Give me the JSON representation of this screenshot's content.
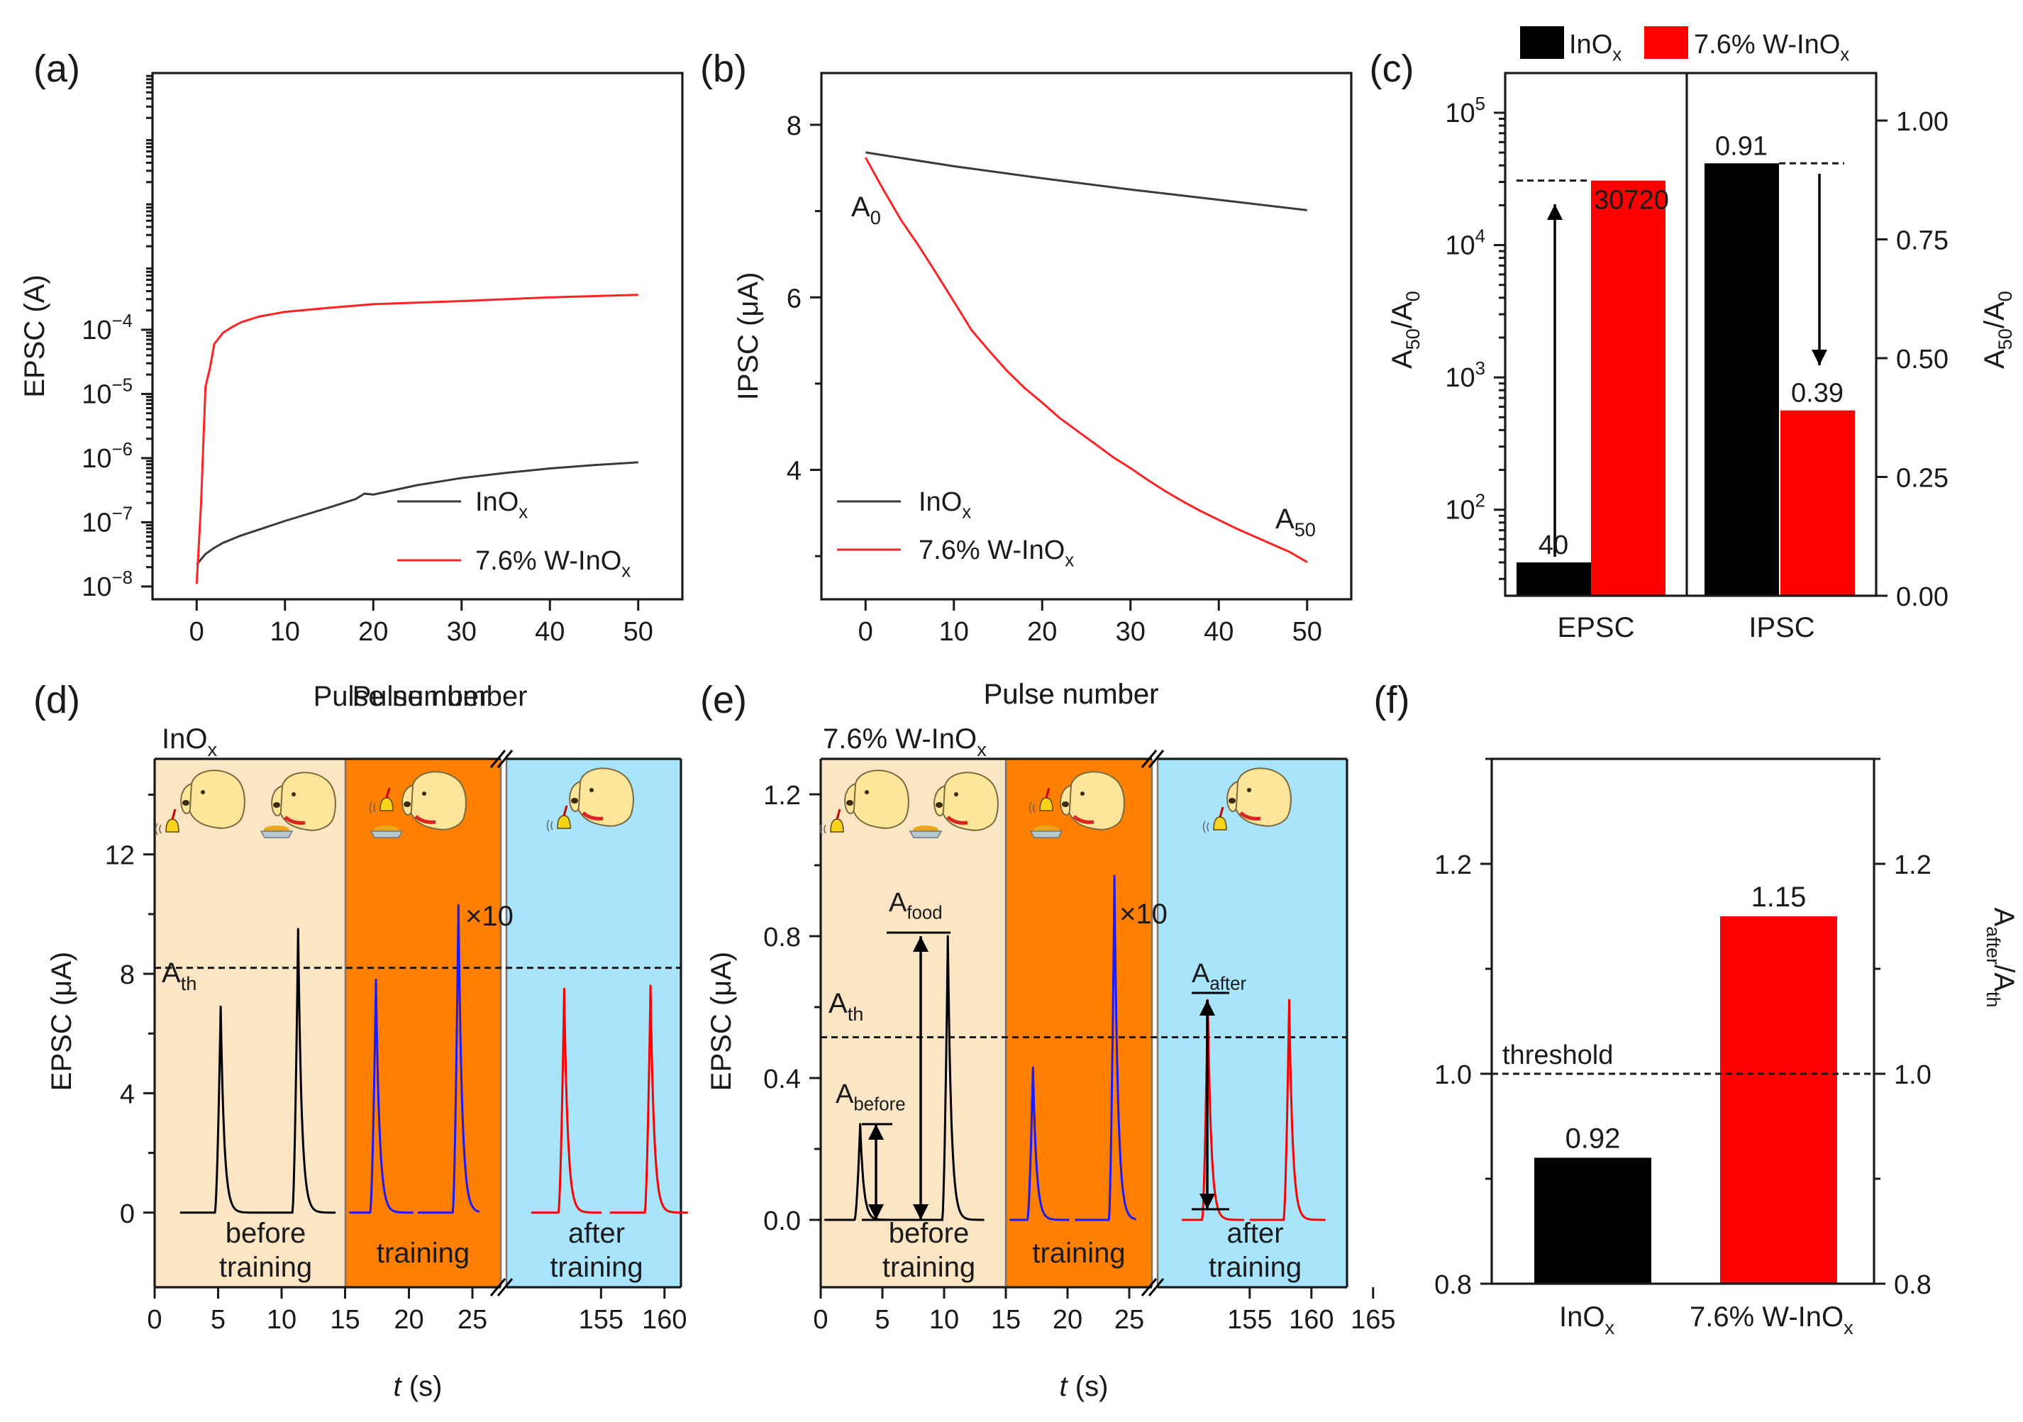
{
  "panels": {
    "a": {
      "label": "(a)"
    },
    "b": {
      "label": "(b)"
    },
    "c": {
      "label": "(c)"
    },
    "d": {
      "label": "(d)"
    },
    "e": {
      "label": "(e)"
    },
    "f": {
      "label": "(f)"
    }
  },
  "legend_labels": {
    "inox": "InO",
    "inox_sub": "x",
    "w": "7.6% W-InO",
    "w_sub": "x"
  },
  "annotations": {
    "A0": "A",
    "A0_sub": "0",
    "A50": "A",
    "A50_sub": "50",
    "Ath": "A",
    "Ath_sub": "th",
    "Afood": "A",
    "Afood_sub": "food",
    "Abefore": "A",
    "Abefore_sub": "before",
    "Aafter": "A",
    "Aafter_sub": "after",
    "x10": "×10",
    "threshold": "threshold",
    "before_training": [
      "before",
      "training"
    ],
    "training": "training",
    "after_training": [
      "after",
      "training"
    ],
    "inox_title": "InO",
    "inox_title_sub": "x",
    "w_title": "7.6% W-InO",
    "w_title_sub": "x"
  },
  "colors": {
    "inox": "#3a3a3a",
    "w": "#ff2222",
    "black": "#000000",
    "red": "#ff0000",
    "blue": "#1a1aff",
    "beige": "#fbe5c4",
    "orange": "#ff7f00",
    "cyan": "#a8e4fb",
    "dog": "#fde69a"
  },
  "chart_data": [
    {
      "panel": "a",
      "type": "line",
      "xlabel": "Pulse number",
      "ylabel": "EPSC (A)",
      "yscale": "log",
      "xlim": [
        -5,
        55
      ],
      "ylim_exp": [
        -8.2,
        0
      ],
      "xticks": [
        0,
        10,
        20,
        30,
        40,
        50
      ],
      "yticks": [
        {
          "mant": "10",
          "exp": "−8"
        },
        {
          "mant": "10",
          "exp": "−7"
        },
        {
          "mant": "10",
          "exp": "−6"
        },
        {
          "mant": "10",
          "exp": "−5"
        },
        {
          "mant": "10",
          "exp": "−4"
        }
      ],
      "series": [
        {
          "name": "InOx",
          "x": [
            0,
            1,
            2,
            3,
            5,
            8,
            10,
            15,
            18,
            19,
            20,
            25,
            30,
            35,
            40,
            45,
            50
          ],
          "y": [
            2.2e-08,
            3.2e-08,
            4e-08,
            4.8e-08,
            6.2e-08,
            8.5e-08,
            1.05e-07,
            1.7e-07,
            2.3e-07,
            2.8e-07,
            2.7e-07,
            3.8e-07,
            4.9e-07,
            5.9e-07,
            6.9e-07,
            7.8e-07,
            8.6e-07
          ]
        },
        {
          "name": "7.6% W-InOx",
          "x": [
            0,
            0.5,
            1,
            1.5,
            2,
            3,
            4,
            5,
            7,
            10,
            15,
            20,
            30,
            40,
            50
          ],
          "y": [
            1.1e-08,
            2e-07,
            1.3e-05,
            2.5e-05,
            6e-05,
            9e-05,
            0.00011,
            0.00013,
            0.00016,
            0.00019,
            0.00022,
            0.00025,
            0.00028,
            0.00032,
            0.00035
          ]
        }
      ]
    },
    {
      "panel": "b",
      "type": "line",
      "xlabel": "Pulse number",
      "ylabel": "IPSC (μA)",
      "xlim": [
        -5,
        55
      ],
      "ylim": [
        2.5,
        8.6
      ],
      "xticks": [
        0,
        10,
        20,
        30,
        40,
        50
      ],
      "yticks": [
        4,
        6,
        8
      ],
      "series": [
        {
          "name": "InOx",
          "x": [
            0,
            10,
            20,
            30,
            40,
            50
          ],
          "y": [
            7.68,
            7.52,
            7.38,
            7.25,
            7.13,
            7.01
          ]
        },
        {
          "name": "7.6% W-InOx",
          "x": [
            0,
            2,
            4,
            6,
            8,
            10,
            12,
            14,
            16,
            18,
            20,
            22,
            24,
            26,
            28,
            30,
            32,
            34,
            36,
            38,
            40,
            42,
            44,
            46,
            48,
            50
          ],
          "y": [
            7.62,
            7.25,
            6.9,
            6.6,
            6.28,
            5.95,
            5.62,
            5.38,
            5.15,
            4.95,
            4.78,
            4.6,
            4.45,
            4.3,
            4.15,
            4.02,
            3.88,
            3.75,
            3.63,
            3.52,
            3.42,
            3.32,
            3.23,
            3.14,
            3.05,
            2.93
          ]
        }
      ]
    },
    {
      "panel": "c",
      "type": "bar",
      "categories": [
        "EPSC",
        "IPSC"
      ],
      "left_ylabel": "A50/A0",
      "right_ylabel": "A50/A0",
      "left_scale": "log",
      "left_ylim_exp": [
        1.35,
        5.3
      ],
      "left_yticks": [
        {
          "mant": "10",
          "exp": "2"
        },
        {
          "mant": "10",
          "exp": "3"
        },
        {
          "mant": "10",
          "exp": "4"
        },
        {
          "mant": "10",
          "exp": "5"
        }
      ],
      "right_ylim": [
        0,
        1.1
      ],
      "right_yticks": [
        "0.00",
        "0.25",
        "0.50",
        "0.75",
        "1.00"
      ],
      "series": [
        {
          "name": "InOx",
          "values": [
            40,
            0.91
          ]
        },
        {
          "name": "7.6% W-InOx",
          "values": [
            30720,
            0.39
          ]
        }
      ],
      "value_labels": [
        "40",
        "30720",
        "0.91",
        "0.39"
      ]
    },
    {
      "panel": "d",
      "type": "line",
      "title": "InOx",
      "xlabel": "t (s)",
      "ylabel": "EPSC (μA)",
      "xticks": [
        "0",
        "5",
        "10",
        "15",
        "20",
        "25",
        "155",
        "160"
      ],
      "yticks": [
        0,
        4,
        8,
        12
      ],
      "ylim": [
        -2.5,
        15.2
      ],
      "threshold": 8.2,
      "peaks": [
        {
          "t": 5.2,
          "amp": 6.9,
          "color": "black"
        },
        {
          "t": 11.3,
          "amp": 9.5,
          "color": "black"
        },
        {
          "t": 17.4,
          "amp": 7.8,
          "color": "blue"
        },
        {
          "t": 23.9,
          "amp": 10.3,
          "color": "blue"
        },
        {
          "t": 152.1,
          "amp": 7.5,
          "color": "red"
        },
        {
          "t": 158.9,
          "amp": 7.6,
          "color": "red"
        }
      ]
    },
    {
      "panel": "e",
      "type": "line",
      "title": "7.6% W-InOx",
      "xlabel": "t (s)",
      "ylabel": "EPSC (μA)",
      "xticks": [
        "0",
        "5",
        "10",
        "15",
        "20",
        "25",
        "155",
        "160",
        "165"
      ],
      "yticks": [
        "0.0",
        "0.4",
        "0.8",
        "1.2"
      ],
      "ylim": [
        -0.19,
        1.3
      ],
      "threshold": 0.515,
      "peaks": [
        {
          "t": 3.2,
          "amp": 0.27,
          "color": "black"
        },
        {
          "t": 10.3,
          "amp": 0.8,
          "color": "black"
        },
        {
          "t": 17.2,
          "amp": 0.43,
          "color": "blue"
        },
        {
          "t": 23.8,
          "amp": 0.97,
          "color": "blue"
        },
        {
          "t": 151.6,
          "amp": 0.62,
          "color": "red"
        },
        {
          "t": 158.2,
          "amp": 0.62,
          "color": "red"
        }
      ]
    },
    {
      "panel": "f",
      "type": "bar",
      "categories": [
        "InOx",
        "7.6% W-InOx"
      ],
      "values": [
        0.92,
        1.15
      ],
      "value_labels": [
        "0.92",
        "1.15"
      ],
      "ylabel": "Aafter/Ath",
      "ylim": [
        0.8,
        1.3
      ],
      "yticks": [
        "0.8",
        "1.0",
        "1.2"
      ],
      "threshold": 1.0
    }
  ]
}
